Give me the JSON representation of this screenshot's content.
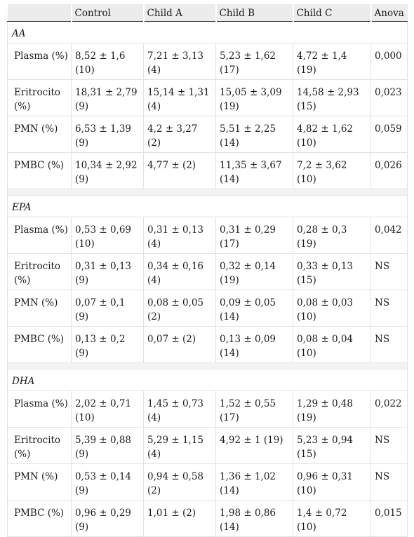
{
  "header": [
    "",
    "Control",
    "Child A",
    "Child B",
    "Child C",
    "Anova"
  ],
  "sections": [
    {
      "title": "AA",
      "rows": [
        [
          "Plasma (%)",
          "8,52 ± 1,6 (10)",
          "7,21 ± 3,13 (4)",
          "5,23 ± 1,62 (17)",
          "4,72 ± 1,4 (19)",
          "0,000"
        ],
        [
          "Eritrocito (%)",
          "18,31 ± 2,79 (9)",
          "15,14 ± 1,31 (4)",
          "15,05 ± 3,09 (19)",
          "14,58 ± 2,93 (15)",
          "0,023"
        ],
        [
          "PMN (%)",
          "6,53 ± 1,39 (9)",
          "4,2 ± 3,27 (2)",
          "5,51 ± 2,25 (14)",
          "4,82 ± 1,62 (10)",
          "0,059"
        ],
        [
          "PMBC (%)",
          "10,34 ± 2,92 (9)",
          "4,77 ± (2)",
          "11,35 ± 3,67 (14)",
          "7,2 ± 3,62 (10)",
          "0,026"
        ]
      ]
    },
    {
      "title": "EPA",
      "rows": [
        [
          "Plasma (%)",
          "0,53 ± 0,69 (10)",
          "0,31 ± 0,13 (4)",
          "0,31 ± 0,29 (17)",
          "0,28 ± 0,3 (19)",
          "0,042"
        ],
        [
          "Eritrocito (%)",
          "0,31 ± 0,13 (9)",
          "0,34 ± 0,16 (4)",
          "0,32 ± 0,14 (19)",
          "0,33 ± 0,13 (15)",
          "NS"
        ],
        [
          "PMN (%)",
          "0,07 ± 0,1 (9)",
          "0,08 ± 0,05 (2)",
          "0,09 ± 0,05 (14)",
          "0,08 ± 0,03 (10)",
          "NS"
        ],
        [
          "PMBC (%)",
          "0,13 ± 0,2 (9)",
          "0,07 ± (2)",
          "0,13 ± 0,09 (14)",
          "0,08 ± 0,04 (10)",
          "NS"
        ]
      ]
    },
    {
      "title": "DHA",
      "rows": [
        [
          "Plasma (%)",
          "2,02 ± 0,71 (10)",
          "1,45 ± 0,73 (4)",
          "1,52 ± 0,55 (17)",
          "1,29 ± 0,48 (19)",
          "0,022"
        ],
        [
          "Eritrocito (%)",
          "5,39 ± 0,88 (9)",
          "5,29 ± 1,15 (4)",
          "4,92 ± 1 (19)",
          "5,23 ± 0,94 (15)",
          "NS"
        ],
        [
          "PMN (%)",
          "0,53 ± 0,14 (9)",
          "0,94 ± 0,58 (2)",
          "1,36 ± 1,02 (14)",
          "0,96 ± 0,31 (10)",
          "NS"
        ],
        [
          "PMBC (%)",
          "0,96 ± 0,29 (9)",
          "1,01 ± (2)",
          "1,98 ± 0,86 (14)",
          "1,4 ± 0,72 (10)",
          "0,015"
        ]
      ]
    }
  ]
}
